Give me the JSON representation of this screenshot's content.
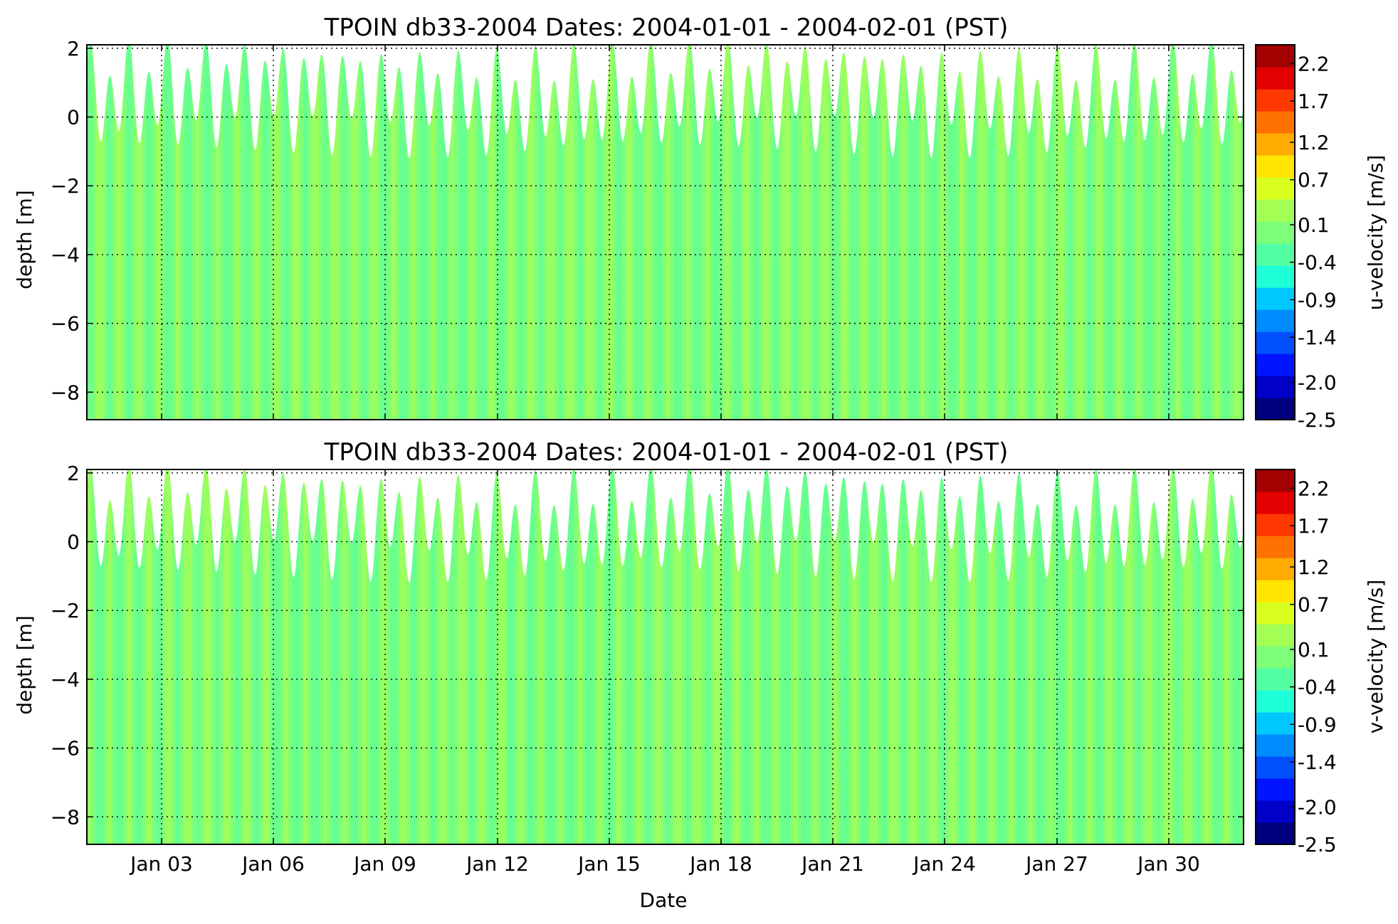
{
  "figure": {
    "xlabel": "Date"
  },
  "chart_data": [
    {
      "type": "heatmap",
      "title": "TPOIN db33-2004 Dates: 2004-01-01 - 2004-02-01 (PST)",
      "xlabel": "",
      "ylabel": "depth [m]",
      "x_range": [
        "2004-01-01",
        "2004-02-01"
      ],
      "ylim": [
        -8.8,
        2.1
      ],
      "grid": true,
      "x_ticks": [
        "Jan 03",
        "Jan 06",
        "Jan 09",
        "Jan 12",
        "Jan 15",
        "Jan 18",
        "Jan 21",
        "Jan 24",
        "Jan 27",
        "Jan 30"
      ],
      "y_ticks": [
        "2",
        "0",
        "−2",
        "−4",
        "−6",
        "−8"
      ],
      "y_tick_values": [
        2,
        0,
        -2,
        -4,
        -6,
        -8
      ],
      "colorbar": {
        "label": "u-velocity [m/s]",
        "range": [
          -2.5,
          2.5
        ],
        "tick_labels": [
          "2.2",
          "1.7",
          "1.2",
          "0.7",
          "0.1",
          "-0.4",
          "-0.9",
          "-1.4",
          "-2.0",
          "-2.5"
        ],
        "tick_values": [
          2.25,
          1.75,
          1.2,
          0.7,
          0.1,
          -0.4,
          -0.9,
          -1.4,
          -2.0,
          -2.5
        ]
      },
      "dominant_value_range": [
        -0.2,
        0.3
      ],
      "surface_elevation_range": [
        -1.5,
        2.0
      ]
    },
    {
      "type": "heatmap",
      "title": "TPOIN db33-2004 Dates: 2004-01-01 - 2004-02-01 (PST)",
      "xlabel": "Date",
      "ylabel": "depth [m]",
      "x_range": [
        "2004-01-01",
        "2004-02-01"
      ],
      "ylim": [
        -8.8,
        2.1
      ],
      "grid": true,
      "x_ticks": [
        "Jan 03",
        "Jan 06",
        "Jan 09",
        "Jan 12",
        "Jan 15",
        "Jan 18",
        "Jan 21",
        "Jan 24",
        "Jan 27",
        "Jan 30"
      ],
      "y_ticks": [
        "2",
        "0",
        "−2",
        "−4",
        "−6",
        "−8"
      ],
      "y_tick_values": [
        2,
        0,
        -2,
        -4,
        -6,
        -8
      ],
      "colorbar": {
        "label": "v-velocity [m/s]",
        "range": [
          -2.5,
          2.5
        ],
        "tick_labels": [
          "2.2",
          "1.7",
          "1.2",
          "0.7",
          "0.1",
          "-0.4",
          "-0.9",
          "-1.4",
          "-2.0",
          "-2.5"
        ],
        "tick_values": [
          2.25,
          1.75,
          1.2,
          0.7,
          0.1,
          -0.4,
          -0.9,
          -1.4,
          -2.0,
          -2.5
        ]
      },
      "dominant_value_range": [
        -0.4,
        0.2
      ],
      "surface_elevation_range": [
        -1.5,
        2.0
      ]
    }
  ],
  "colormap": [
    "#00007f",
    "#0000c8",
    "#0014ff",
    "#0050ff",
    "#008cff",
    "#00c8ff",
    "#1effd8",
    "#54ffa3",
    "#7dff7a",
    "#a3ff54",
    "#d8ff1e",
    "#ffe500",
    "#ffab00",
    "#ff7100",
    "#ff3700",
    "#e40000",
    "#a30000"
  ],
  "field_colors": {
    "mid": "#7dff7a",
    "cyan_band": "#54ffa3",
    "yellow_band": "#c2ff3d"
  }
}
